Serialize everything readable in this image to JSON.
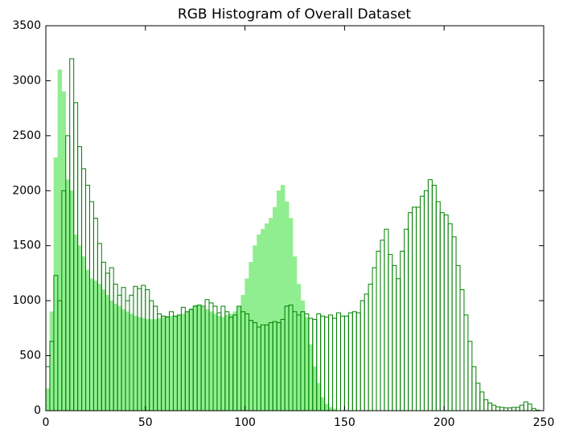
{
  "chart_data": {
    "type": "histogram",
    "title": "RGB Histogram of Overall Dataset",
    "bins": [
      0,
      2,
      4,
      6,
      8,
      10,
      12,
      14,
      16,
      18,
      20,
      22,
      24,
      26,
      28,
      30,
      32,
      34,
      36,
      38,
      40,
      42,
      44,
      46,
      48,
      50,
      52,
      54,
      56,
      58,
      60,
      62,
      64,
      66,
      68,
      70,
      72,
      74,
      76,
      78,
      80,
      82,
      84,
      86,
      88,
      90,
      92,
      94,
      96,
      98,
      100,
      102,
      104,
      106,
      108,
      110,
      112,
      114,
      116,
      118,
      120,
      122,
      124,
      126,
      128,
      130,
      132,
      134,
      136,
      138,
      140,
      142,
      144,
      146,
      148,
      150,
      152,
      154,
      156,
      158,
      160,
      162,
      164,
      166,
      168,
      170,
      172,
      174,
      176,
      178,
      180,
      182,
      184,
      186,
      188,
      190,
      192,
      194,
      196,
      198,
      200,
      202,
      204,
      206,
      208,
      210,
      212,
      214,
      216,
      218,
      220,
      222,
      224,
      226,
      228,
      230,
      232,
      234,
      236,
      238,
      240,
      242,
      244,
      246,
      248,
      250
    ],
    "series": [
      {
        "color": "#90ee90",
        "histtype": "bar",
        "values": [
          200,
          900,
          2300,
          3100,
          2900,
          2100,
          2000,
          1600,
          1500,
          1400,
          1280,
          1200,
          1180,
          1150,
          1100,
          1050,
          1000,
          970,
          950,
          920,
          900,
          880,
          860,
          850,
          840,
          830,
          830,
          830,
          840,
          850,
          860,
          860,
          860,
          870,
          880,
          900,
          930,
          960,
          960,
          940,
          920,
          900,
          880,
          860,
          850,
          870,
          880,
          900,
          950,
          1050,
          1200,
          1350,
          1500,
          1600,
          1650,
          1700,
          1750,
          1850,
          2000,
          2050,
          1900,
          1750,
          1400,
          1150,
          1000,
          850,
          600,
          400,
          250,
          120,
          60,
          30,
          15,
          0,
          0,
          0,
          0,
          0,
          0,
          0,
          0,
          0,
          0,
          0,
          0,
          0,
          0,
          0,
          0,
          0,
          0,
          0,
          0,
          0,
          0,
          0,
          0,
          0,
          0,
          0,
          0,
          0,
          0,
          0,
          0,
          0,
          0,
          0,
          0,
          0,
          0,
          0,
          0,
          0,
          0,
          0,
          0,
          0,
          0,
          0,
          0,
          0,
          0,
          0,
          0,
          0,
          0,
          0,
          0,
          0,
          0
        ]
      },
      {
        "color": "#008000",
        "histtype": "step",
        "values": [
          400,
          630,
          1230,
          1000,
          2000,
          2500,
          3200,
          2800,
          2400,
          2200,
          2050,
          1900,
          1750,
          1520,
          1350,
          1250,
          1300,
          1150,
          1050,
          1120,
          1000,
          1050,
          1130,
          1110,
          1140,
          1100,
          1000,
          950,
          880,
          860,
          850,
          900,
          860,
          870,
          940,
          900,
          920,
          950,
          960,
          950,
          1010,
          980,
          950,
          890,
          950,
          900,
          850,
          870,
          950,
          900,
          880,
          820,
          800,
          760,
          780,
          780,
          800,
          810,
          800,
          830,
          950,
          960,
          900,
          870,
          900,
          880,
          840,
          830,
          880,
          860,
          850,
          870,
          840,
          890,
          860,
          860,
          890,
          900,
          890,
          1000,
          1060,
          1150,
          1300,
          1450,
          1550,
          1650,
          1420,
          1320,
          1200,
          1450,
          1650,
          1800,
          1850,
          1850,
          1950,
          2000,
          2100,
          2050,
          1900,
          1800,
          1780,
          1700,
          1580,
          1320,
          1100,
          870,
          630,
          400,
          250,
          170,
          100,
          70,
          50,
          35,
          30,
          25,
          25,
          30,
          30,
          50,
          80,
          60,
          20,
          5,
          0
        ]
      }
    ],
    "xlim": [
      0,
      250
    ],
    "xticks": [
      0,
      50,
      100,
      150,
      200,
      250
    ],
    "ylim": [
      0,
      3500
    ],
    "yticks": [
      0,
      500,
      1000,
      1500,
      2000,
      2500,
      3000,
      3500
    ]
  }
}
